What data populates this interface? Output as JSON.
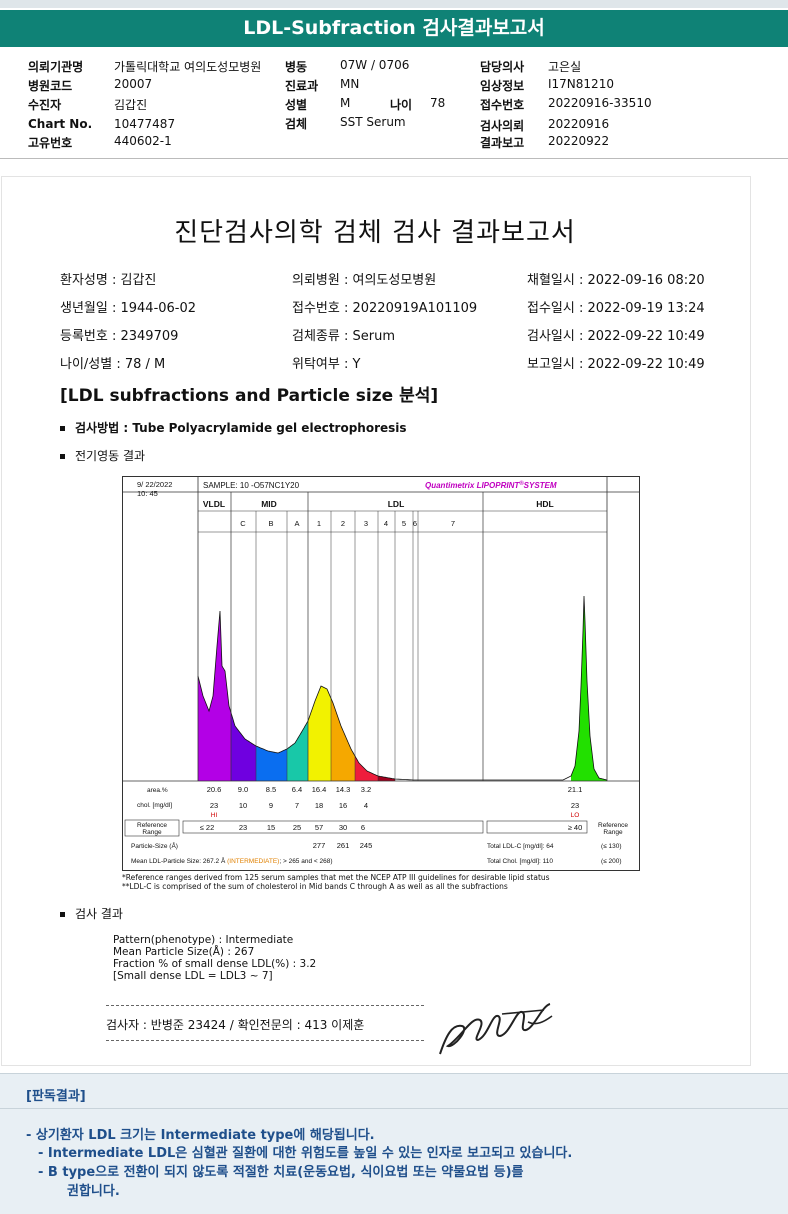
{
  "header": {
    "title": "LDL-Subfraction 검사결과보고서",
    "col1": [
      {
        "label": "의뢰기관명",
        "value": "가톨릭대학교 여의도성모병원"
      },
      {
        "label": "병원코드",
        "value": "20007"
      },
      {
        "label": "수진자",
        "value": "김갑진"
      },
      {
        "label": "Chart No.",
        "value": "10477487"
      },
      {
        "label": "고유번호",
        "value": "440602-1"
      }
    ],
    "col2": [
      {
        "label": "병동",
        "value": "07W / 0706"
      },
      {
        "label": "진료과",
        "value": "MN"
      },
      {
        "label": "성별",
        "value": "M"
      },
      {
        "label": "검체",
        "value": "SST Serum"
      }
    ],
    "age": {
      "label": "나이",
      "value": "78"
    },
    "col3": [
      {
        "label": "담당의사",
        "value": "고은실"
      },
      {
        "label": "임상정보",
        "value": "I17N81210"
      },
      {
        "label": "접수번호",
        "value": "20220916-33510"
      },
      {
        "label": "검사의뢰",
        "value": "20220916"
      },
      {
        "label": "결과보고",
        "value": "20220922"
      }
    ]
  },
  "report": {
    "title": "진단검사의학 검체 검사 결과보고서",
    "info": [
      [
        "환자성명 : 김갑진",
        "의뢰병원 : 여의도성모병원",
        "채혈일시 : 2022-09-16 08:20"
      ],
      [
        "생년월일 : 1944-06-02",
        "접수번호 : 20220919A101109",
        "접수일시 : 2022-09-19 13:24"
      ],
      [
        "등록번호 : 2349709",
        "검체종류 : Serum",
        "검사일시 : 2022-09-22 10:49"
      ],
      [
        "나이/성별 : 78 / M",
        "위탁여부 : Y",
        "보고일시 : 2022-09-22 10:49"
      ]
    ],
    "section": "[LDL subfractions and Particle size 분석]",
    "method": "검사방법 : Tube Polyacrylamide gel electrophoresis",
    "electro": "전기영동 결과",
    "result_heading": "검사 결과",
    "results": [
      "Pattern(phenotype) : Intermediate",
      "Mean Particle Size(Å) : 267",
      "Fraction % of small dense LDL(%) : 3.2",
      "[Small dense LDL = LDL3 ~ 7]"
    ],
    "signature": "검사자 : 반병준  23424  /  확인전문의 : 413  이제훈"
  },
  "chart_data": {
    "type": "area",
    "date": "9/ 22/2022",
    "time": "10: 45",
    "sample": "SAMPLE:  10 -O57NC1Y20",
    "brand": "Quantimetrix LIPOPRINT",
    "brand_sup": "®",
    "brand_tail": "SYSTEM",
    "groups": [
      "VLDL",
      "MID",
      "LDL",
      "HDL"
    ],
    "bands": [
      "C",
      "B",
      "A",
      "1",
      "2",
      "3",
      "4",
      "5",
      "6",
      "7"
    ],
    "fraction_labels": [
      "VLDL",
      "C",
      "B",
      "A",
      "1",
      "2",
      "3",
      "4",
      "5",
      "6",
      "7",
      "HDL"
    ],
    "colors": [
      "#b300e6",
      "#6f00e0",
      "#0a6ef0",
      "#18c8a8",
      "#f2f200",
      "#f5a800",
      "#ee1d3c",
      "#a0001e",
      "#7a0018",
      "#7a0018",
      "#7a0018",
      "#22e000"
    ],
    "area_pct": [
      "20.6",
      "9.0",
      "8.5",
      "6.4",
      "16.4",
      "14.3",
      "3.2",
      "",
      "",
      "",
      "",
      "21.1"
    ],
    "chol": [
      "23",
      "10",
      "9",
      "7",
      "18",
      "16",
      "4",
      "",
      "",
      "",
      "",
      "23"
    ],
    "flags": {
      "vldl": "HI",
      "hdl": "LO"
    },
    "reference": [
      "≤ 22",
      "23",
      "15",
      "25",
      "57",
      "30",
      "6",
      "≥ 40"
    ],
    "row_labels": {
      "area": "area.%",
      "chol": "chol. [mg/dl]",
      "ref": "Reference Range"
    },
    "particle_size_label": "Particle-Size (Å)",
    "particle_sizes": [
      "277",
      "261",
      "245"
    ],
    "mean_ldl": {
      "prefix": "Mean LDL-Particle Size:",
      "value": "267.2 Å",
      "note": "(INTERMEDIATE)",
      "tail": "; > 265 and < 268)"
    },
    "total_ldl": {
      "label": "Total LDL-C [mg/dl]:",
      "value": "64",
      "range": "(≤ 130)"
    },
    "total_chol": {
      "label": "Total Chol. [mg/dl]:",
      "value": "110",
      "range": "(≤ 200)"
    },
    "ref_right": "Reference Range",
    "notes": [
      "*Reference ranges derived from 125 serum samples that met the NCEP ATP III guidelines for desirable lipid status",
      "**LDL-C is comprised of the sum of cholesterol in Mid bands C through A as well as all the subfractions"
    ]
  },
  "judgement": {
    "title": "[판독결과]",
    "lines": [
      "-  상기환자 LDL 크기는 Intermediate type에 해당됩니다.",
      "-  Intermediate LDL은 심혈관 질환에 대한 위험도를 높일 수 있는 인자로 보고되고 있습니다.",
      "-  B type으로 전환이 되지 않도록 적절한 치료(운동요법, 식이요법 또는 약물요법 등)를",
      "권합니다."
    ]
  }
}
